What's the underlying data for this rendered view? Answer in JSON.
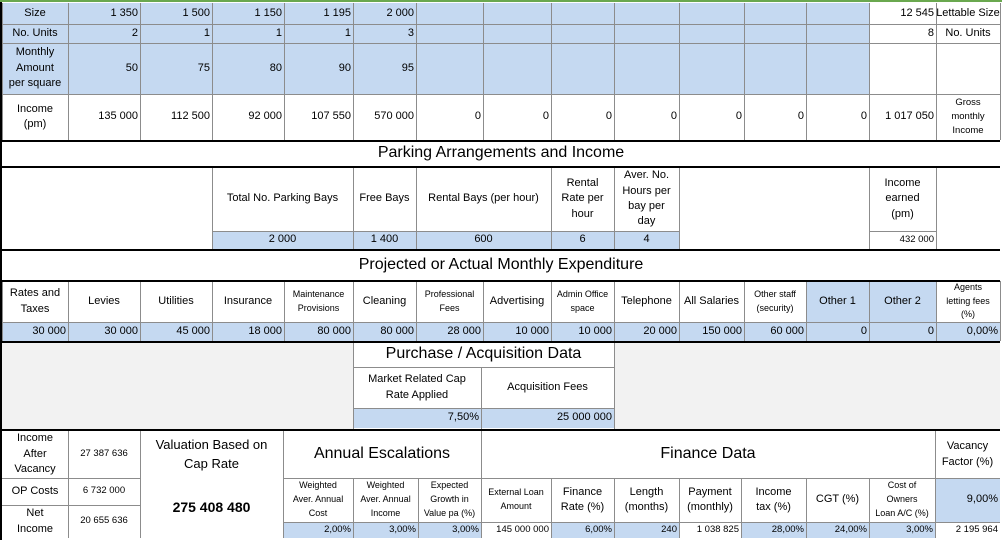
{
  "colors": {
    "blue_cell": "#c5d9f1",
    "grey_area": "#f2f2f2",
    "top_border": "#6aa84f"
  },
  "income": {
    "size_label": "Size",
    "sizes": [
      "1 350",
      "1 500",
      "1 150",
      "1 195",
      "2 000"
    ],
    "size_total": "12 545",
    "size_total_label": "Lettable Size",
    "units_label": "No. Units",
    "units": [
      "2",
      "1",
      "1",
      "1",
      "3"
    ],
    "units_total": "8",
    "units_total_label": "No. Units",
    "monthly_label": "Monthly\nAmount\nper square",
    "monthly": [
      "50",
      "75",
      "80",
      "90",
      "95"
    ],
    "income_label": "Income\n(pm)",
    "income_values": [
      "135 000",
      "112 500",
      "92 000",
      "107 550",
      "570 000",
      "0",
      "0",
      "0",
      "0",
      "0",
      "0",
      "0"
    ],
    "income_total": "1 017 050",
    "income_total_label": "Gross\nmonthly\nIncome"
  },
  "parking": {
    "title": "Parking Arrangements and Income",
    "headers": [
      "Total No. Parking Bays",
      "Free Bays",
      "Rental Bays (per hour)",
      "Rental\nRate per\nhour",
      "Aver. No.\nHours per\nbay per\nday"
    ],
    "values": [
      "2 000",
      "1 400",
      "600",
      "6",
      "4"
    ],
    "earned_label": "Income\nearned\n(pm)",
    "earned_value": "432 000"
  },
  "expenditure": {
    "title": "Projected or Actual Monthly Expenditure",
    "headers": [
      "Rates and\nTaxes",
      "Levies",
      "Utilities",
      "Insurance",
      "Maintenance\nProvisions",
      "Cleaning",
      "Professional\nFees",
      "Advertising",
      "Admin Office\nspace",
      "Telephone",
      "All Salaries",
      "Other staff\n(security)",
      "Other 1",
      "Other 2",
      "Agents\nletting fees\n(%)"
    ],
    "values": [
      "30 000",
      "30 000",
      "45 000",
      "18 000",
      "80 000",
      "80 000",
      "28 000",
      "10 000",
      "10 000",
      "20 000",
      "150 000",
      "60 000",
      "0",
      "0",
      "0,00%"
    ]
  },
  "acquisition": {
    "title": "Purchase / Acquisition Data",
    "cap_label": "Market Related Cap\nRate Applied",
    "fees_label": "Acquisition Fees",
    "cap_value": "7,50%",
    "fees_value": "25 000 000"
  },
  "summary": {
    "after_vacancy_label": "Income\nAfter\nVacancy",
    "after_vacancy_value": "27 387 636",
    "op_costs_label": "OP Costs",
    "op_costs_value": "6 732 000",
    "net_income_label": "Net\nIncome",
    "net_income_value": "20 655 636",
    "valuation_label": "Valuation Based on\nCap Rate",
    "valuation_value": "275 408 480"
  },
  "escalations": {
    "title": "Annual Escalations",
    "headers": [
      "Weighted\nAver. Annual\nCost",
      "Weighted\nAver. Annual\nIncome",
      "Expected\nGrowth in\nValue pa (%)"
    ],
    "values": [
      "2,00%",
      "3,00%",
      "3,00%"
    ]
  },
  "finance": {
    "title": "Finance Data",
    "headers": [
      "External Loan\nAmount",
      "Finance\nRate (%)",
      "Length\n(months)",
      "Payment\n(monthly)",
      "Income\ntax (%)",
      "CGT (%)",
      "Cost of\nOwners\nLoan A/C (%)"
    ],
    "values": [
      "145 000 000",
      "6,00%",
      "240",
      "1 038 825",
      "28,00%",
      "24,00%",
      "3,00%"
    ]
  },
  "vacancy": {
    "label": "Vacancy\nFactor (%)",
    "value": "9,00%",
    "extra_value": "2 195 964"
  }
}
